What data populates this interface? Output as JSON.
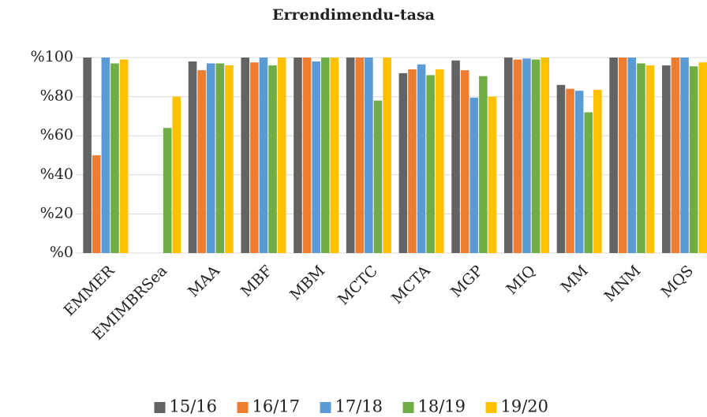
{
  "chart_data": {
    "type": "bar",
    "title": "Errendimendu-tasa",
    "categories": [
      "EMMER",
      "EMIMBRSea",
      "MAA",
      "MBF",
      "MBM",
      "MCTC",
      "MCTA",
      "MGP",
      "MIQ",
      "MM",
      "MNM",
      "MQS"
    ],
    "series": [
      {
        "name": "15/16",
        "color": "#636363",
        "values": [
          100,
          null,
          98,
          100,
          100,
          100,
          92,
          98.5,
          100,
          86,
          100,
          96
        ]
      },
      {
        "name": "16/17",
        "color": "#ed7d31",
        "values": [
          50,
          null,
          93.5,
          97.5,
          100,
          100,
          94,
          93.5,
          99,
          84,
          100,
          100
        ]
      },
      {
        "name": "17/18",
        "color": "#5b9bd5",
        "values": [
          100,
          null,
          97,
          100,
          98,
          100,
          96.5,
          79.5,
          99.5,
          83,
          100,
          100
        ]
      },
      {
        "name": "18/19",
        "color": "#70ad47",
        "values": [
          97,
          64,
          97,
          96,
          100,
          78,
          91,
          90.5,
          99,
          72,
          97,
          95.5
        ]
      },
      {
        "name": "19/20",
        "color": "#ffc000",
        "values": [
          99,
          80,
          96,
          100,
          100,
          100,
          94,
          80,
          100,
          83.5,
          96,
          97.5
        ]
      }
    ],
    "ylim": [
      0,
      100
    ],
    "yticks": [
      {
        "value": 0,
        "label": "%0"
      },
      {
        "value": 20,
        "label": "%20"
      },
      {
        "value": 40,
        "label": "%40"
      },
      {
        "value": 60,
        "label": "%60"
      },
      {
        "value": 80,
        "label": "%80"
      },
      {
        "value": 100,
        "label": "%100"
      }
    ],
    "grid": true
  }
}
